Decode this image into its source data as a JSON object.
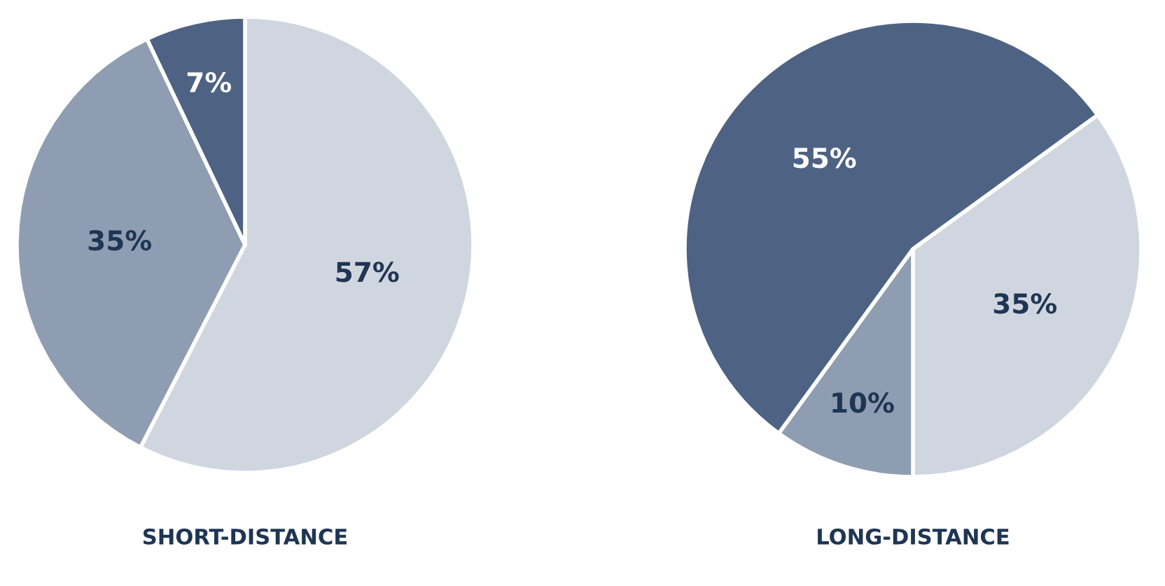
{
  "chart_data": [
    {
      "type": "pie",
      "title": "SHORT-DISTANCE",
      "categories": [
        null,
        null,
        null
      ],
      "values": [
        57,
        35,
        7
      ],
      "colors": [
        "#d0d6df",
        "#8e9db1",
        "#4e6383"
      ],
      "value_labels": [
        "57%",
        "35%",
        "7%"
      ]
    },
    {
      "type": "pie",
      "title": "LONG-DISTANCE",
      "categories": [
        null,
        null,
        null
      ],
      "values": [
        35,
        10,
        55
      ],
      "colors": [
        "#d0d6df",
        "#8e9db1",
        "#4e6383"
      ],
      "value_labels": [
        "35%",
        "10%",
        "55%"
      ]
    }
  ]
}
